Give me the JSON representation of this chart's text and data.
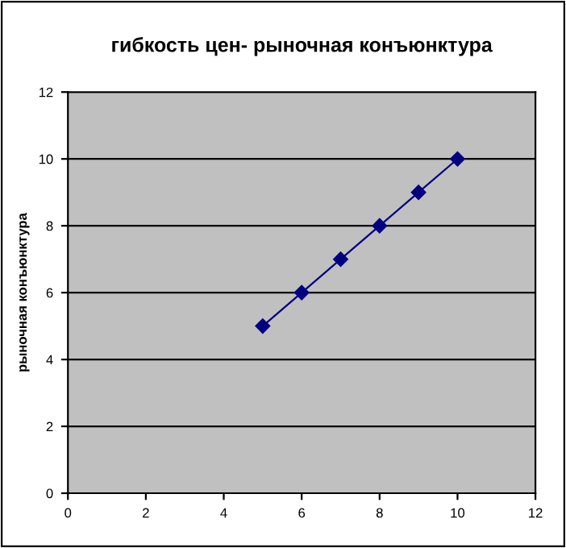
{
  "chart_data": {
    "type": "line",
    "title": "гибкость цен- рыночная конъюнктура",
    "ylabel": "рыночная конъюнктура",
    "x": [
      5,
      6,
      7,
      8,
      9,
      10
    ],
    "series": [
      {
        "color": "#000080",
        "values": [
          5,
          6,
          7,
          8,
          9,
          10
        ]
      }
    ],
    "xlim": [
      0,
      12
    ],
    "ylim": [
      0,
      12
    ],
    "xticks": [
      0,
      2,
      4,
      6,
      8,
      10,
      12
    ],
    "yticks": [
      0,
      2,
      4,
      6,
      8,
      10,
      12
    ],
    "grid": "y",
    "marker": "diamond",
    "line_style": "solid",
    "legend": false
  }
}
